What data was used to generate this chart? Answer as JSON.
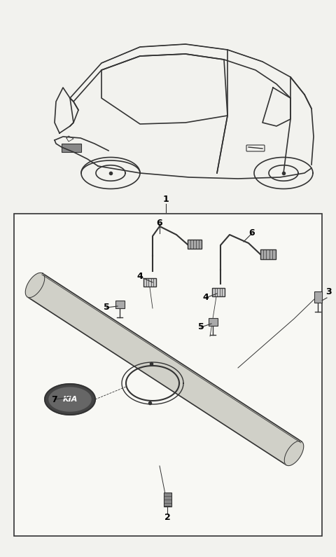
{
  "bg_color": "#f2f2ee",
  "fig_width": 4.8,
  "fig_height": 7.95,
  "dpi": 100,
  "line_color": "#333333",
  "box_facecolor": "#f8f8f4",
  "box_edgecolor": "#333333",
  "kia_fill": "#444444",
  "kia_inner": "#666666",
  "bar_fill": "#d0d0c8",
  "connector_fill": "#aaaaaa",
  "connector2_fill": "#cccccc",
  "screw_fill": "#888888"
}
